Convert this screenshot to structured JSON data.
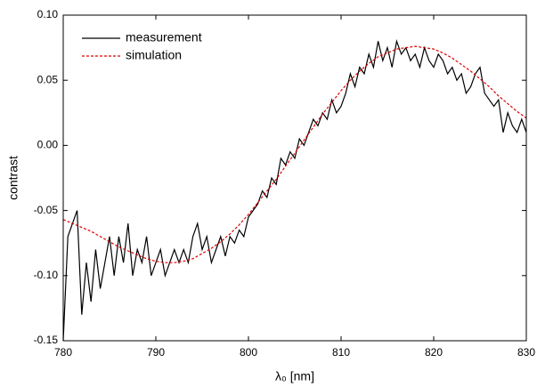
{
  "chart_data": {
    "type": "line",
    "xlabel": "λ₀ [nm]",
    "ylabel": "contrast",
    "xlim": [
      780,
      830
    ],
    "xticks": [
      780,
      790,
      800,
      810,
      820,
      830
    ],
    "ylim": [
      -0.15,
      0.1
    ],
    "yticks": [
      {
        "value": -0.15,
        "label": "-0.15"
      },
      {
        "value": -0.1,
        "label": "-0.10"
      },
      {
        "value": -0.05,
        "label": "-0.05"
      },
      {
        "value": 0,
        "label": "0.00"
      },
      {
        "value": 0.05,
        "label": "0.05"
      },
      {
        "value": 0.1,
        "label": "0.10"
      }
    ],
    "legend": "upper left",
    "series": [
      {
        "name": "measurement",
        "color": "#000000",
        "dash": "solid",
        "x": [
          780,
          780.5,
          781,
          781.5,
          782,
          782.5,
          783,
          783.5,
          784,
          784.5,
          785,
          785.5,
          786,
          786.5,
          787,
          787.5,
          788,
          788.5,
          789,
          789.5,
          790,
          790.5,
          791,
          791.5,
          792,
          792.5,
          793,
          793.5,
          794,
          794.5,
          795,
          795.5,
          796,
          796.5,
          797,
          797.5,
          798,
          798.5,
          799,
          799.5,
          800,
          800.5,
          801,
          801.5,
          802,
          802.5,
          803,
          803.5,
          804,
          804.5,
          805,
          805.5,
          806,
          806.5,
          807,
          807.5,
          808,
          808.5,
          809,
          809.5,
          810,
          810.5,
          811,
          811.5,
          812,
          812.5,
          813,
          813.5,
          814,
          814.5,
          815,
          815.5,
          816,
          816.5,
          817,
          817.5,
          818,
          818.5,
          819,
          819.5,
          820,
          820.5,
          821,
          821.5,
          822,
          822.5,
          823,
          823.5,
          824,
          824.5,
          825,
          825.5,
          826,
          826.5,
          827,
          827.5,
          828,
          828.5,
          829,
          829.5,
          830
        ],
        "values": [
          -0.15,
          -0.07,
          -0.06,
          -0.05,
          -0.13,
          -0.09,
          -0.12,
          -0.08,
          -0.11,
          -0.09,
          -0.07,
          -0.1,
          -0.07,
          -0.09,
          -0.06,
          -0.1,
          -0.08,
          -0.09,
          -0.07,
          -0.1,
          -0.09,
          -0.08,
          -0.1,
          -0.09,
          -0.08,
          -0.09,
          -0.08,
          -0.09,
          -0.07,
          -0.06,
          -0.08,
          -0.07,
          -0.09,
          -0.08,
          -0.07,
          -0.085,
          -0.07,
          -0.075,
          -0.065,
          -0.07,
          -0.055,
          -0.05,
          -0.045,
          -0.035,
          -0.04,
          -0.025,
          -0.03,
          -0.01,
          -0.015,
          -0.005,
          -0.01,
          0.005,
          0,
          0.01,
          0.02,
          0.015,
          0.025,
          0.02,
          0.035,
          0.025,
          0.03,
          0.04,
          0.055,
          0.045,
          0.06,
          0.055,
          0.07,
          0.06,
          0.08,
          0.065,
          0.075,
          0.06,
          0.08,
          0.07,
          0.075,
          0.065,
          0.07,
          0.06,
          0.075,
          0.065,
          0.06,
          0.07,
          0.065,
          0.055,
          0.06,
          0.05,
          0.055,
          0.04,
          0.045,
          0.055,
          0.06,
          0.04,
          0.035,
          0.03,
          0.035,
          0.01,
          0.025,
          0.015,
          0.01,
          0.02,
          0.01
        ]
      },
      {
        "name": "simulation",
        "color": "#e00000",
        "dash": "dashed",
        "x": [
          780,
          781,
          782,
          783,
          784,
          785,
          786,
          787,
          788,
          789,
          790,
          791,
          792,
          793,
          794,
          795,
          796,
          797,
          798,
          799,
          800,
          801,
          802,
          803,
          804,
          805,
          806,
          807,
          808,
          809,
          810,
          811,
          812,
          813,
          814,
          815,
          816,
          817,
          818,
          819,
          820,
          821,
          822,
          823,
          824,
          825,
          826,
          827,
          828,
          829,
          830
        ],
        "values": [
          -0.057,
          -0.06,
          -0.063,
          -0.066,
          -0.07,
          -0.074,
          -0.078,
          -0.081,
          -0.084,
          -0.087,
          -0.089,
          -0.09,
          -0.09,
          -0.089,
          -0.087,
          -0.083,
          -0.079,
          -0.074,
          -0.068,
          -0.061,
          -0.053,
          -0.044,
          -0.035,
          -0.026,
          -0.016,
          -0.006,
          0.004,
          0.014,
          0.024,
          0.033,
          0.042,
          0.05,
          0.057,
          0.063,
          0.068,
          0.071,
          0.074,
          0.075,
          0.076,
          0.075,
          0.074,
          0.071,
          0.067,
          0.062,
          0.057,
          0.051,
          0.045,
          0.038,
          0.032,
          0.026,
          0.021
        ]
      }
    ]
  }
}
